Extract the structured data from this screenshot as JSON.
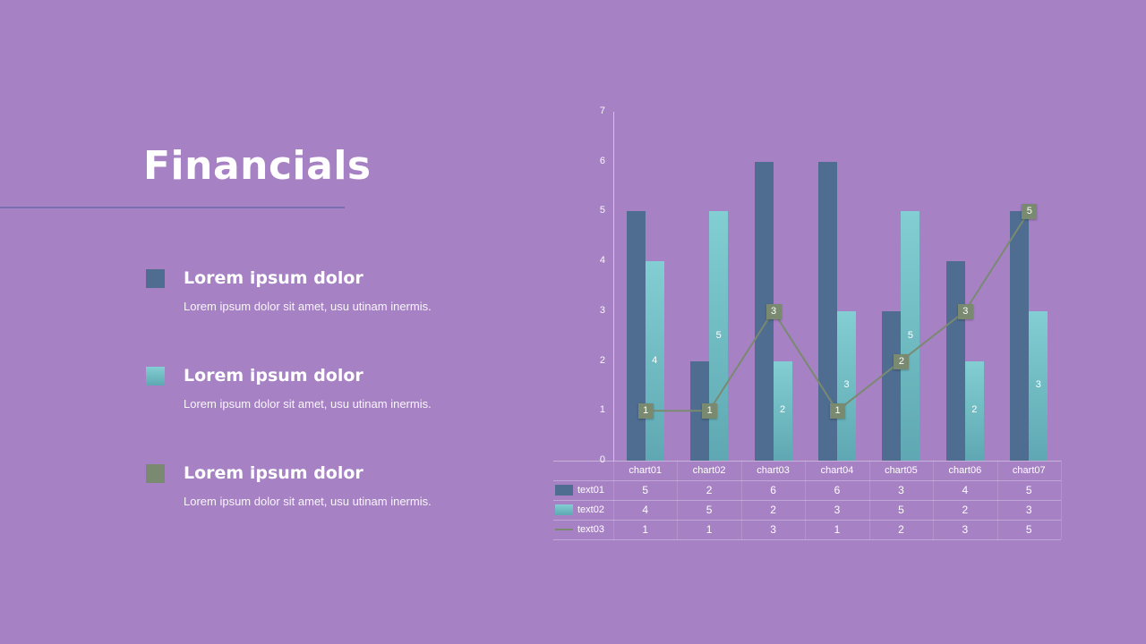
{
  "slide": {
    "title": "Financials"
  },
  "legend_items": [
    {
      "heading": "Lorem ipsum dolor",
      "body": "Lorem ipsum dolor sit amet, usu utinam inermis.",
      "color": "#4e6d90"
    },
    {
      "heading": "Lorem ipsum dolor",
      "body": "Lorem ipsum dolor sit amet, usu utinam inermis.",
      "gradient": [
        "#82ced2",
        "#5fa8b3"
      ]
    },
    {
      "heading": "Lorem ipsum dolor",
      "body": "Lorem ipsum dolor sit amet, usu utinam inermis.",
      "color": "#7a8a70"
    }
  ],
  "chart_data": {
    "type": "bar",
    "subtype": "grouped-bars-with-line",
    "categories": [
      "chart01",
      "chart02",
      "chart03",
      "chart04",
      "chart05",
      "chart06",
      "chart07"
    ],
    "series": [
      {
        "name": "text01",
        "type": "bar",
        "color": "#4e6d90",
        "values": [
          5,
          2,
          6,
          6,
          3,
          4,
          5
        ],
        "data_labels": false
      },
      {
        "name": "text02",
        "type": "bar",
        "color": "#6fbcc3",
        "gradient": [
          "#82ced2",
          "#5fa8b3"
        ],
        "values": [
          4,
          5,
          2,
          3,
          5,
          2,
          3
        ],
        "data_labels": true
      },
      {
        "name": "text03",
        "type": "line",
        "color": "#7a8a70",
        "values": [
          1,
          1,
          3,
          1,
          2,
          3,
          5
        ],
        "data_labels": true
      }
    ],
    "title": "",
    "xlabel": "",
    "ylabel": "",
    "ylim": [
      0,
      7
    ],
    "yticks": [
      0,
      1,
      2,
      3,
      4,
      5,
      6,
      7
    ],
    "grid": false,
    "legend_position": "data-table-left"
  }
}
